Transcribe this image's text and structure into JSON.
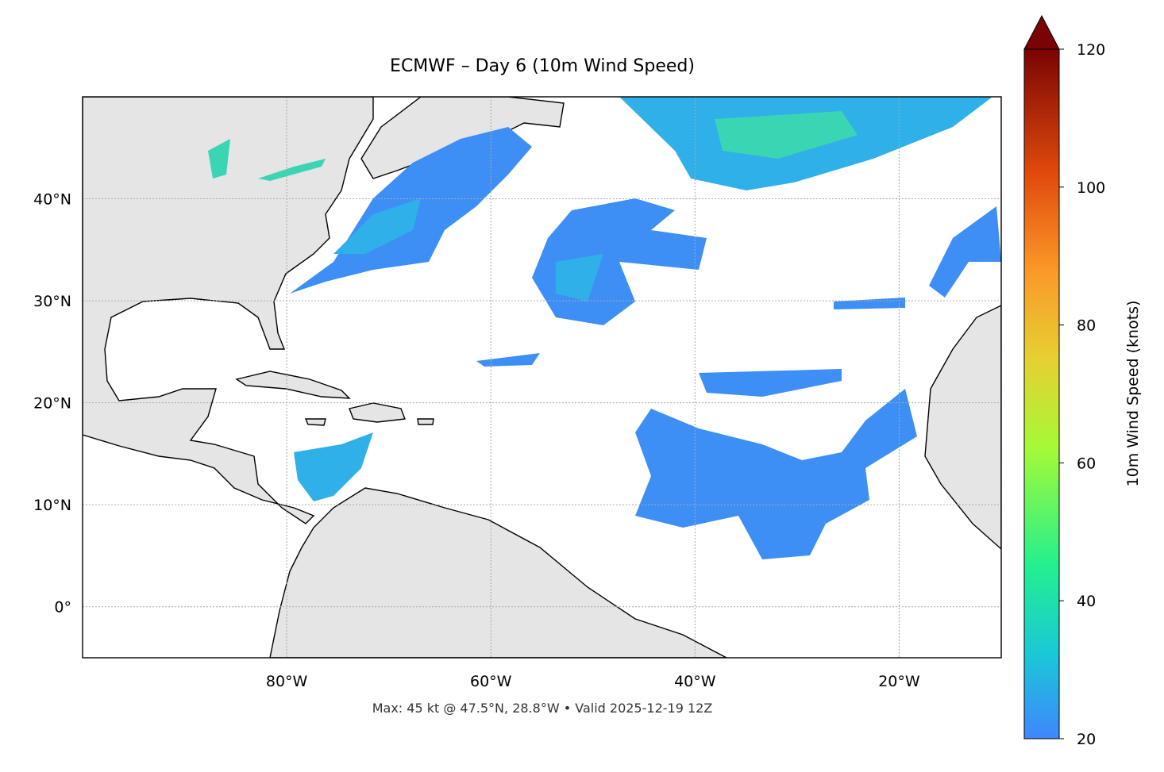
{
  "map": {
    "title": "ECMWF – Day 6 (10m Wind Speed)",
    "lonlim": [
      -100,
      -10
    ],
    "latlim": [
      -5,
      50
    ],
    "lon_ticks": [
      {
        "value": -80,
        "label": "80°W"
      },
      {
        "value": -60,
        "label": "60°W"
      },
      {
        "value": -40,
        "label": "40°W"
      },
      {
        "value": -20,
        "label": "20°W"
      }
    ],
    "lat_ticks": [
      {
        "value": 0,
        "label": "0°"
      },
      {
        "value": 10,
        "label": "10°N"
      },
      {
        "value": 20,
        "label": "20°N"
      },
      {
        "value": 30,
        "label": "30°N"
      },
      {
        "value": 40,
        "label": "40°N"
      }
    ],
    "footer": "Max: 45 kt @ 47.5°N, 28.8°W • Valid 2025-12-19 12Z",
    "colorbar": {
      "label": "10m Wind Speed (knots)",
      "lim": [
        20,
        120
      ],
      "ticks": [
        20,
        40,
        60,
        80,
        100,
        120
      ]
    }
  }
}
